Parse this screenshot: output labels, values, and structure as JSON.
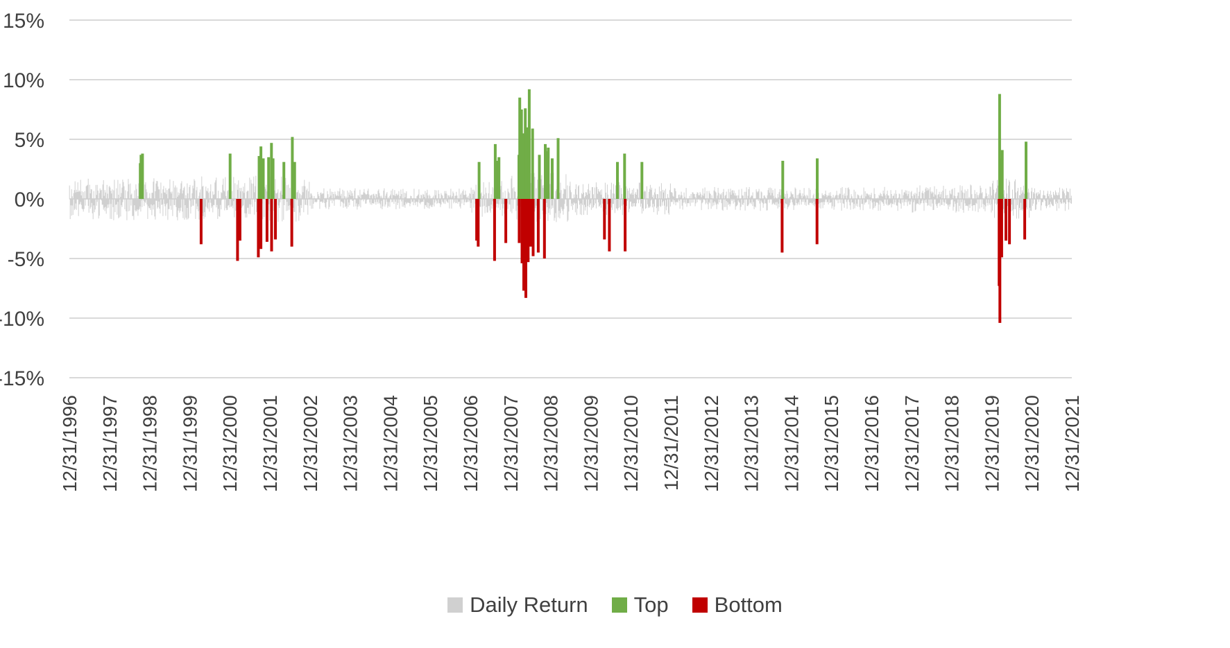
{
  "chart_data": {
    "type": "bar",
    "title": "",
    "xlabel": "",
    "ylabel": "",
    "ylim": [
      -0.15,
      0.15
    ],
    "y_ticks": [
      {
        "value": 0.15,
        "label": "15%"
      },
      {
        "value": 0.1,
        "label": "10%"
      },
      {
        "value": 0.05,
        "label": "5%"
      },
      {
        "value": 0.0,
        "label": "0%"
      },
      {
        "value": -0.05,
        "label": "-5%"
      },
      {
        "value": -0.1,
        "label": "-10%"
      },
      {
        "value": -0.15,
        "label": "-15%"
      }
    ],
    "x_ticks": [
      "12/31/1996",
      "12/31/1997",
      "12/31/1998",
      "12/31/1999",
      "12/31/2000",
      "12/31/2001",
      "12/31/2002",
      "12/31/2003",
      "12/31/2004",
      "12/31/2005",
      "12/31/2006",
      "12/31/2007",
      "12/31/2008",
      "12/31/2009",
      "12/31/2010",
      "12/31/2011",
      "12/31/2012",
      "12/31/2013",
      "12/31/2014",
      "12/31/2015",
      "12/31/2016",
      "12/31/2017",
      "12/31/2018",
      "12/31/2019",
      "12/31/2020",
      "12/31/2021"
    ],
    "x_range": [
      "1996-12-31",
      "2021-12-31"
    ],
    "grid": true,
    "legend_position": "bottom",
    "colors": {
      "Daily Return": "#d0d0d0",
      "Top": "#70ad47",
      "Bottom": "#c00000",
      "grid": "#d9d9d9",
      "text": "#404040"
    },
    "series": [
      {
        "name": "Top",
        "points": [
          {
            "x": "1998-10-08",
            "y": 0.03
          },
          {
            "x": "1998-10-15",
            "y": 0.037
          },
          {
            "x": "1998-10-28",
            "y": 0.038
          },
          {
            "x": "2001-01-03",
            "y": 0.038
          },
          {
            "x": "2001-09-24",
            "y": 0.036
          },
          {
            "x": "2001-10-11",
            "y": 0.044
          },
          {
            "x": "2001-11-01",
            "y": 0.034
          },
          {
            "x": "2001-12-20",
            "y": 0.035
          },
          {
            "x": "2002-01-15",
            "y": 0.047
          },
          {
            "x": "2002-01-29",
            "y": 0.034
          },
          {
            "x": "2002-05-08",
            "y": 0.031
          },
          {
            "x": "2002-07-24",
            "y": 0.052
          },
          {
            "x": "2002-08-14",
            "y": 0.031
          },
          {
            "x": "2007-03-21",
            "y": 0.031
          },
          {
            "x": "2007-08-15",
            "y": 0.046
          },
          {
            "x": "2007-08-29",
            "y": 0.032
          },
          {
            "x": "2007-09-18",
            "y": 0.035
          },
          {
            "x": "2008-03-18",
            "y": 0.037
          },
          {
            "x": "2008-03-25",
            "y": 0.085
          },
          {
            "x": "2008-04-10",
            "y": 0.075
          },
          {
            "x": "2008-04-25",
            "y": 0.055
          },
          {
            "x": "2008-05-15",
            "y": 0.076
          },
          {
            "x": "2008-06-05",
            "y": 0.06
          },
          {
            "x": "2008-06-20",
            "y": 0.092
          },
          {
            "x": "2008-07-20",
            "y": 0.059
          },
          {
            "x": "2008-09-20",
            "y": 0.037
          },
          {
            "x": "2008-11-13",
            "y": 0.046
          },
          {
            "x": "2008-11-24",
            "y": 0.04
          },
          {
            "x": "2008-12-10",
            "y": 0.043
          },
          {
            "x": "2009-01-15",
            "y": 0.034
          },
          {
            "x": "2009-03-10",
            "y": 0.051
          },
          {
            "x": "2010-09-01",
            "y": 0.031
          },
          {
            "x": "2010-11-05",
            "y": 0.038
          },
          {
            "x": "2011-04-12",
            "y": 0.031
          },
          {
            "x": "2014-10-16",
            "y": 0.032
          },
          {
            "x": "2015-08-26",
            "y": 0.034
          },
          {
            "x": "2020-03-13",
            "y": 0.088
          },
          {
            "x": "2020-03-24",
            "y": 0.034
          },
          {
            "x": "2020-04-06",
            "y": 0.041
          },
          {
            "x": "2020-11-09",
            "y": 0.048
          }
        ]
      },
      {
        "name": "Bottom",
        "points": [
          {
            "x": "2000-04-14",
            "y": -0.038
          },
          {
            "x": "2001-03-12",
            "y": -0.052
          },
          {
            "x": "2001-04-03",
            "y": -0.035
          },
          {
            "x": "2001-09-17",
            "y": -0.049
          },
          {
            "x": "2001-10-11",
            "y": -0.042
          },
          {
            "x": "2001-12-05",
            "y": -0.036
          },
          {
            "x": "2002-01-16",
            "y": -0.044
          },
          {
            "x": "2002-02-20",
            "y": -0.034
          },
          {
            "x": "2002-07-19",
            "y": -0.04
          },
          {
            "x": "2007-02-27",
            "y": -0.035
          },
          {
            "x": "2007-03-13",
            "y": -0.04
          },
          {
            "x": "2007-08-09",
            "y": -0.052
          },
          {
            "x": "2007-11-19",
            "y": -0.037
          },
          {
            "x": "2008-03-20",
            "y": -0.037
          },
          {
            "x": "2008-04-15",
            "y": -0.054
          },
          {
            "x": "2008-05-01",
            "y": -0.077
          },
          {
            "x": "2008-05-20",
            "y": -0.083
          },
          {
            "x": "2008-06-10",
            "y": -0.053
          },
          {
            "x": "2008-07-01",
            "y": -0.04
          },
          {
            "x": "2008-07-25",
            "y": -0.048
          },
          {
            "x": "2008-09-10",
            "y": -0.045
          },
          {
            "x": "2008-11-05",
            "y": -0.05
          },
          {
            "x": "2010-05-06",
            "y": -0.034
          },
          {
            "x": "2010-06-20",
            "y": -0.044
          },
          {
            "x": "2010-11-10",
            "y": -0.044
          },
          {
            "x": "2014-10-10",
            "y": -0.045
          },
          {
            "x": "2015-08-24",
            "y": -0.038
          },
          {
            "x": "2020-03-09",
            "y": -0.073
          },
          {
            "x": "2020-03-16",
            "y": -0.104
          },
          {
            "x": "2020-04-01",
            "y": -0.049
          },
          {
            "x": "2020-05-10",
            "y": -0.035
          },
          {
            "x": "2020-06-11",
            "y": -0.038
          },
          {
            "x": "2020-10-28",
            "y": -0.034
          }
        ]
      },
      {
        "name": "Daily Return",
        "envelope": [
          {
            "from": "1997-01-01",
            "to": "1997-12-31",
            "amplitude": 0.017
          },
          {
            "from": "1998-01-01",
            "to": "2000-03-31",
            "amplitude": 0.018
          },
          {
            "from": "2000-04-01",
            "to": "2002-12-31",
            "amplitude": 0.02
          },
          {
            "from": "2003-01-01",
            "to": "2006-12-31",
            "amplitude": 0.009
          },
          {
            "from": "2007-01-01",
            "to": "2007-12-31",
            "amplitude": 0.015
          },
          {
            "from": "2008-01-01",
            "to": "2009-06-30",
            "amplitude": 0.022
          },
          {
            "from": "2009-07-01",
            "to": "2011-12-31",
            "amplitude": 0.014
          },
          {
            "from": "2012-01-01",
            "to": "2017-12-31",
            "amplitude": 0.01
          },
          {
            "from": "2018-01-01",
            "to": "2019-12-31",
            "amplitude": 0.012
          },
          {
            "from": "2020-01-01",
            "to": "2020-12-31",
            "amplitude": 0.017
          },
          {
            "from": "2021-01-01",
            "to": "2021-12-31",
            "amplitude": 0.01
          }
        ]
      }
    ]
  },
  "legend": {
    "items": [
      {
        "label": "Daily Return",
        "color": "#d0d0d0"
      },
      {
        "label": "Top",
        "color": "#70ad47"
      },
      {
        "label": "Bottom",
        "color": "#c00000"
      }
    ]
  }
}
